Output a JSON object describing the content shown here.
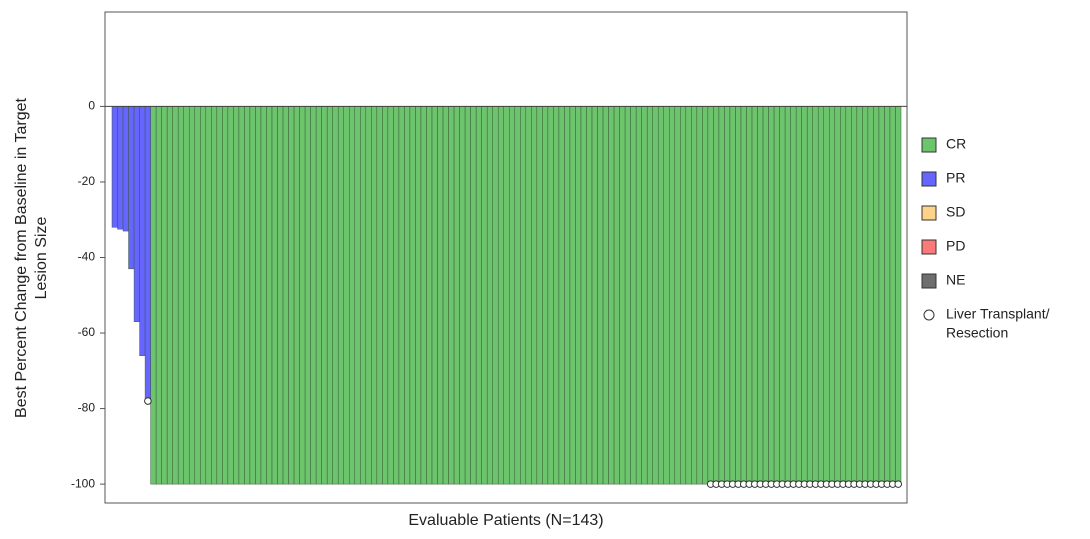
{
  "chart_data": {
    "type": "waterfall",
    "xlabel": "Evaluable Patients (N=143)",
    "ylabel": [
      "Best Percent Change from Baseline in Target",
      "Lesion Size"
    ],
    "ylim": [
      -105,
      25
    ],
    "yticks": [
      0,
      -20,
      -40,
      -60,
      -80,
      -100
    ],
    "series": [
      {
        "name": "CR",
        "color": "#6cc46c",
        "values": [
          null,
          null,
          null,
          null,
          null,
          null,
          null,
          -100,
          -100,
          -100,
          -100,
          -100,
          -100,
          -100,
          -100,
          -100,
          -100,
          -100,
          -100,
          -100,
          -100,
          -100,
          -100,
          -100,
          -100,
          -100,
          -100,
          -100,
          -100,
          -100,
          -100,
          -100,
          -100,
          -100,
          -100,
          -100,
          -100,
          -100,
          -100,
          -100,
          -100,
          -100,
          -100,
          -100,
          -100,
          -100,
          -100,
          -100,
          -100,
          -100,
          -100,
          -100,
          -100,
          -100,
          -100,
          -100,
          -100,
          -100,
          -100,
          -100,
          -100,
          -100,
          -100,
          -100,
          -100,
          -100,
          -100,
          -100,
          -100,
          -100,
          -100,
          -100,
          -100,
          -100,
          -100,
          -100,
          -100,
          -100,
          -100,
          -100,
          -100,
          -100,
          -100,
          -100,
          -100,
          -100,
          -100,
          -100,
          -100,
          -100,
          -100,
          -100,
          -100,
          -100,
          -100,
          -100,
          -100,
          -100,
          -100,
          -100,
          -100,
          -100,
          -100,
          -100,
          -100,
          -100,
          -100,
          -100,
          -100,
          -100,
          -100,
          -100,
          -100,
          -100,
          -100,
          -100,
          -100,
          -100,
          -100,
          -100,
          -100,
          -100,
          -100,
          -100,
          -100,
          -100,
          -100,
          -100,
          -100,
          -100,
          -100,
          -100,
          -100,
          -100,
          -100,
          -100,
          -100,
          -100,
          -100,
          -100,
          -100,
          -100,
          -100
        ]
      },
      {
        "name": "PR",
        "color": "#6666ff",
        "values": [
          -32,
          -32.5,
          -33,
          -43,
          -57,
          -66,
          -78,
          null,
          null,
          null,
          null,
          null,
          null,
          null,
          null,
          null,
          null,
          null,
          null,
          null,
          null,
          null,
          null,
          null,
          null,
          null,
          null,
          null,
          null,
          null,
          null,
          null,
          null,
          null,
          null,
          null,
          null,
          null,
          null,
          null,
          null,
          null,
          null,
          null,
          null,
          null,
          null,
          null,
          null,
          null,
          null,
          null,
          null,
          null,
          null,
          null,
          null,
          null,
          null,
          null,
          null,
          null,
          null,
          null,
          null,
          null,
          null,
          null,
          null,
          null,
          null,
          null,
          null,
          null,
          null,
          null,
          null,
          null,
          null,
          null,
          null,
          null,
          null,
          null,
          null,
          null,
          null,
          null,
          null,
          null,
          null,
          null,
          null,
          null,
          null,
          null,
          null,
          null,
          null,
          null,
          null,
          null,
          null,
          null,
          null,
          null,
          null,
          null,
          null,
          null,
          null,
          null,
          null,
          null,
          null,
          null,
          null,
          null,
          null,
          null,
          null,
          null,
          null,
          null,
          null,
          null,
          null,
          null,
          null,
          null,
          null,
          null,
          null,
          null,
          null,
          null,
          null,
          null,
          null,
          null,
          null,
          null,
          null
        ]
      },
      {
        "name": "SD",
        "color": "#fdd38a",
        "values": []
      },
      {
        "name": "PD",
        "color": "#fa7a7a",
        "values": []
      },
      {
        "name": "NE",
        "color": "#6e6e6e",
        "values": []
      }
    ],
    "marker": {
      "name": [
        "Liver Transplant/",
        "Resection"
      ],
      "patients": [
        6,
        108,
        109,
        110,
        111,
        112,
        113,
        114,
        115,
        116,
        117,
        118,
        119,
        120,
        121,
        122,
        123,
        124,
        125,
        126,
        127,
        128,
        129,
        130,
        131,
        132,
        133,
        134,
        135,
        136,
        137,
        138,
        139,
        140,
        141,
        142
      ]
    }
  }
}
